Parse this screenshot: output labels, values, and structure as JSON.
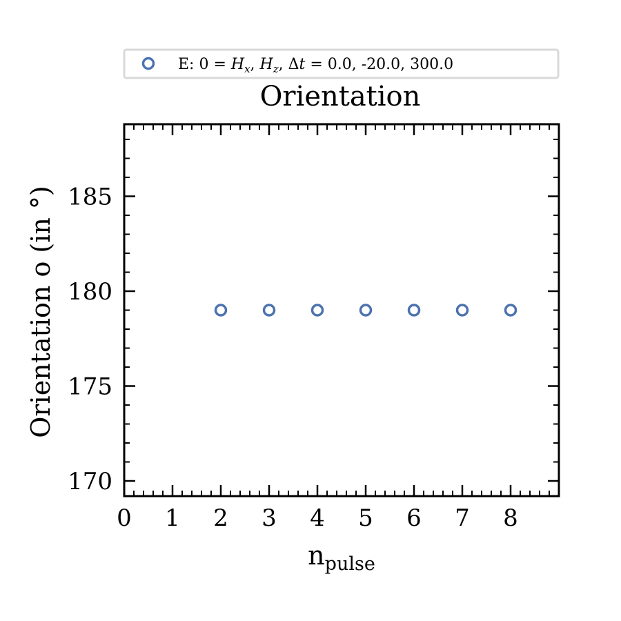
{
  "chart_data": {
    "type": "scatter",
    "title": "Orientation",
    "xlabel_main": "n",
    "xlabel_sub": "pulse",
    "ylabel": "Orientation o (in °)",
    "xlim": [
      0,
      9
    ],
    "ylim": [
      169.2,
      188.8
    ],
    "xticks": [
      0,
      1,
      2,
      3,
      4,
      5,
      6,
      7,
      8
    ],
    "xtick_labels": [
      "0",
      "1",
      "2",
      "3",
      "4",
      "5",
      "6",
      "7",
      "8"
    ],
    "yticks": [
      170,
      175,
      180,
      185
    ],
    "ytick_labels": [
      "170",
      "175",
      "180",
      "185"
    ],
    "grid": false,
    "legend_position": "top-center",
    "series": [
      {
        "name": "E: 0 = Hx, Hz, Δt =  0.0, -20.0, 300.0",
        "color": "#4c72b0",
        "marker": "open-circle",
        "x": [
          2,
          3,
          4,
          5,
          6,
          7,
          8
        ],
        "y": [
          179,
          179,
          179,
          179,
          179,
          179,
          179
        ]
      }
    ]
  }
}
